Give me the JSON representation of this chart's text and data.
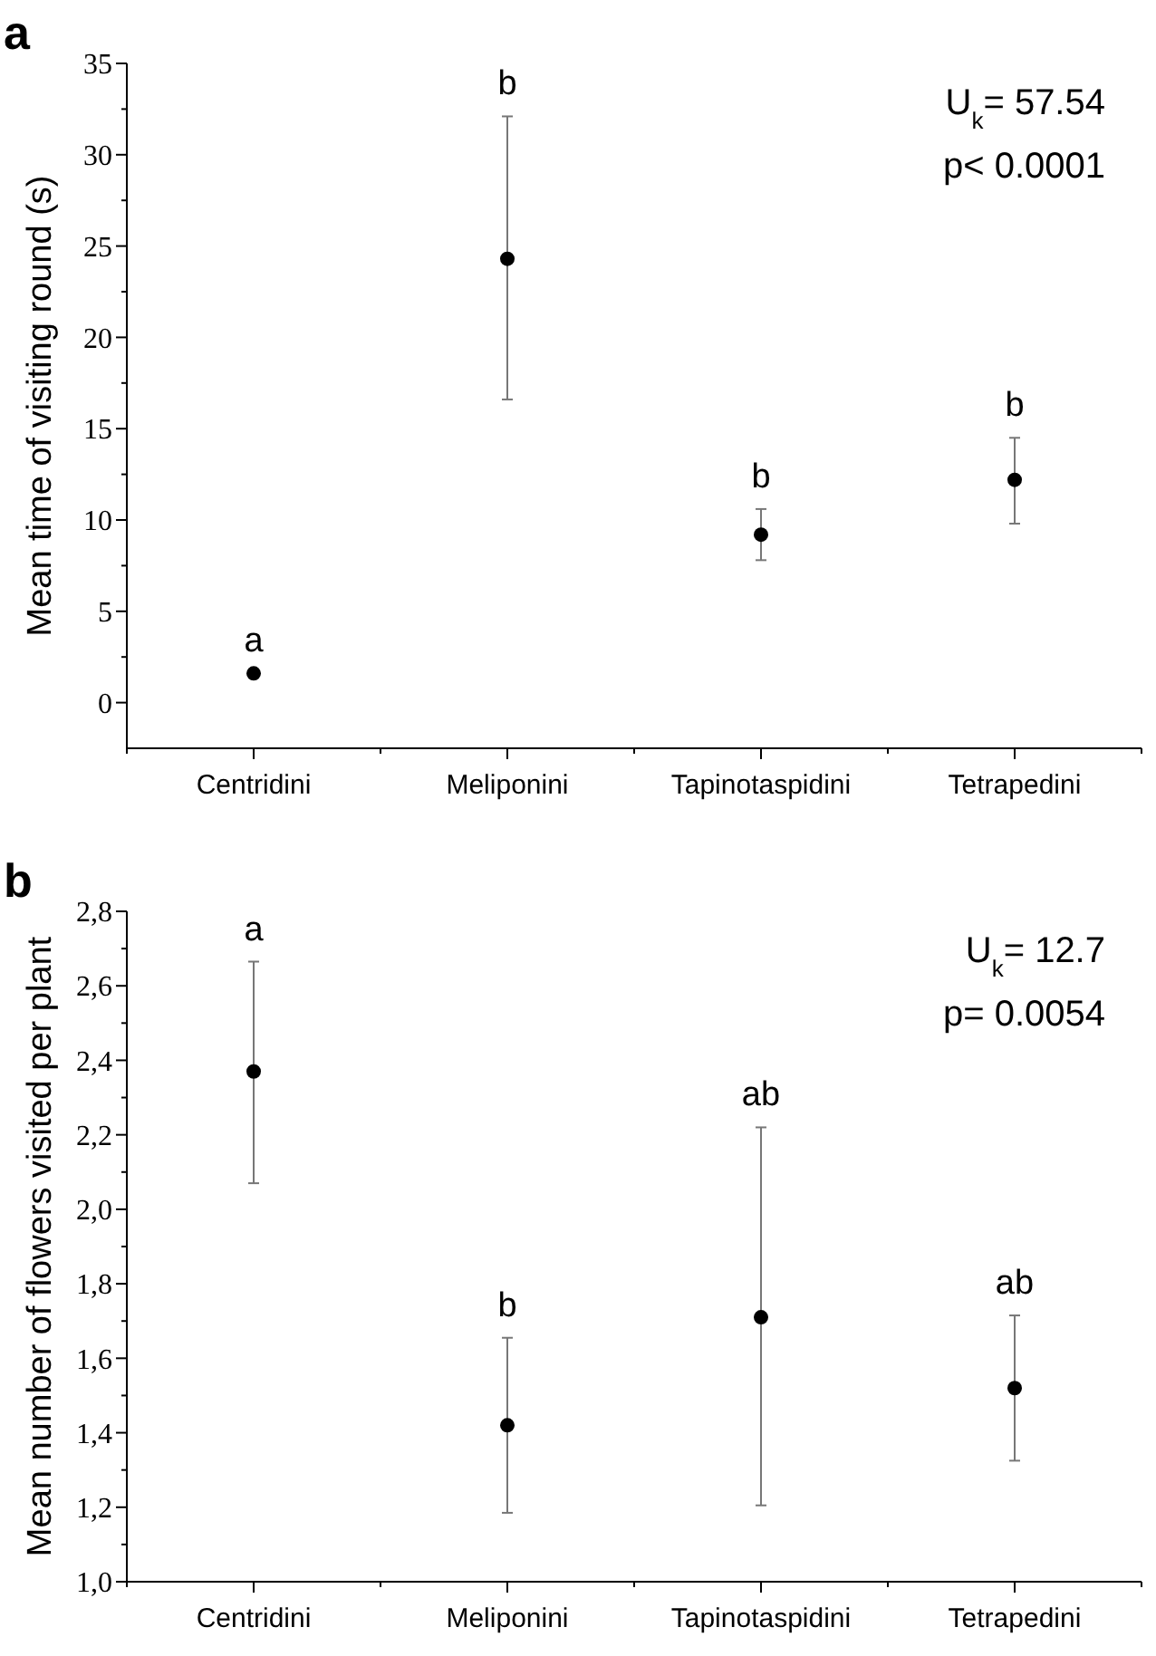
{
  "chart_data": [
    {
      "type": "scatter",
      "title": "a",
      "ylabel": "Mean time of visiting round (s)",
      "categories": [
        "Centridini",
        "Meliponini",
        "Tapinotaspidini",
        "Tetrapedini"
      ],
      "marker": "circle",
      "ylim": [
        -2.5,
        35
      ],
      "yticks": [
        0,
        5,
        10,
        15,
        20,
        25,
        30,
        35,
        {
          "value": 2.5,
          "label": null
        },
        {
          "value": 7.5,
          "label": null
        },
        {
          "value": 12.5,
          "label": null
        },
        {
          "value": 17.5,
          "label": null
        },
        {
          "value": 22.5,
          "label": null
        },
        {
          "value": 27.5,
          "label": null
        },
        {
          "value": 32.5,
          "label": null
        }
      ],
      "series": [
        {
          "color": "#000000",
          "values": [
            1.6,
            24.3,
            9.2,
            12.2
          ],
          "errors": [
            null,
            [
              16.6,
              32.1
            ],
            [
              7.8,
              10.6
            ],
            [
              9.8,
              14.5
            ]
          ]
        }
      ],
      "annotations": [
        "a",
        "b",
        "b",
        "b",
        "U$_{k}$= 57.54",
        "p< 0.0001"
      ]
    },
    {
      "type": "scatter",
      "title": "b",
      "ylabel": "Mean number of flowers visited per plant",
      "categories": [
        "Centridini",
        "Meliponini",
        "Tapinotaspidini",
        "Tetrapedini"
      ],
      "marker": "circle",
      "ylim": [
        1.0,
        2.8
      ],
      "yticks": [
        {
          "value": 1.0,
          "label": "1,0"
        },
        {
          "value": 1.2,
          "label": "1,2"
        },
        {
          "value": 1.4,
          "label": "1,4"
        },
        {
          "value": 1.6,
          "label": "1,6"
        },
        {
          "value": 1.8,
          "label": "1,8"
        },
        {
          "value": 2.0,
          "label": "2,0"
        },
        {
          "value": 2.2,
          "label": "2,2"
        },
        {
          "value": 2.4,
          "label": "2,4"
        },
        {
          "value": 2.6,
          "label": "2,6"
        },
        {
          "value": 2.8,
          "label": "2,8"
        },
        {
          "value": 1.1,
          "label": null
        },
        {
          "value": 1.3,
          "label": null
        },
        {
          "value": 1.5,
          "label": null
        },
        {
          "value": 1.7,
          "label": null
        },
        {
          "value": 1.9,
          "label": null
        },
        {
          "value": 2.1,
          "label": null
        },
        {
          "value": 2.3,
          "label": null
        },
        {
          "value": 2.5,
          "label": null
        },
        {
          "value": 2.7,
          "label": null
        }
      ],
      "series": [
        {
          "color": "#000000",
          "values": [
            2.37,
            1.42,
            1.71,
            1.52
          ],
          "errors": [
            [
              2.07,
              2.665
            ],
            [
              1.185,
              1.655
            ],
            [
              1.205,
              2.22
            ],
            [
              1.325,
              1.715
            ]
          ]
        }
      ],
      "annotations": [
        "a",
        "b",
        "ab",
        "ab",
        "U$_{k}$= 12.7",
        "p= 0.0054"
      ]
    }
  ]
}
